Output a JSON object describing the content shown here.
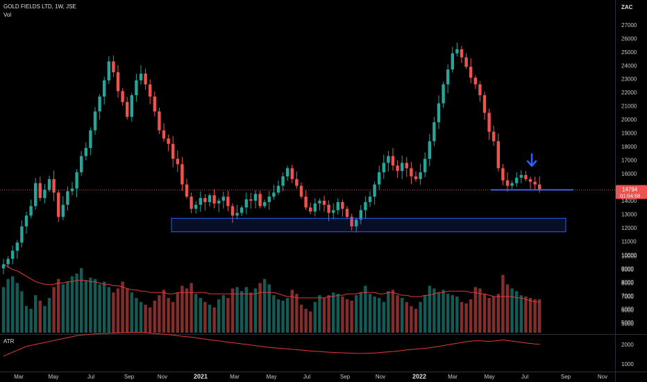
{
  "header": {
    "symbol": "GOLD FIELDS LTD, 1W, JSE",
    "vol_label": "Vol",
    "atr_label": "ATR",
    "currency": "ZAC"
  },
  "price_tag": {
    "price": "14794",
    "countdown": "01:04:58"
  },
  "colors": {
    "up": "#26a69a",
    "down": "#ef5350",
    "annotation": "#2962ff",
    "ma": "#e53935",
    "last_price_line": "#ef5350"
  },
  "chart_data": {
    "type": "candlestick",
    "interval": "1W",
    "price_axis": {
      "ticks": [
        5000,
        6000,
        7000,
        8000,
        9000,
        10000,
        11000,
        12000,
        13000,
        14000,
        15000,
        16000,
        17000,
        18000,
        19000,
        20000,
        21000,
        22000,
        23000,
        24000,
        25000,
        26000,
        27000
      ]
    },
    "atr_axis": {
      "ticks": [
        1000,
        2000
      ]
    },
    "time_axis": {
      "labels": [
        "Mar",
        "May",
        "Jul",
        "Sep",
        "Nov",
        "2021",
        "Mar",
        "May",
        "Jul",
        "Sep",
        "Nov",
        "2022",
        "Mar",
        "May",
        "Jul",
        "Sep",
        "Nov"
      ]
    },
    "close_series": [
      9300,
      9700,
      10300,
      10900,
      12100,
      12900,
      13600,
      15300,
      14200,
      14800,
      15600,
      14600,
      12800,
      13700,
      14700,
      14900,
      16100,
      17300,
      17900,
      19200,
      20600,
      21700,
      22900,
      24300,
      23500,
      22100,
      21300,
      20200,
      21800,
      22900,
      23400,
      22600,
      21700,
      20600,
      19200,
      18600,
      18200,
      17100,
      16700,
      15200,
      14300,
      13400,
      13700,
      14200,
      13900,
      14400,
      13800,
      14000,
      14300,
      13600,
      12900,
      13100,
      13500,
      14100,
      14000,
      14500,
      13600,
      13900,
      14300,
      14600,
      15100,
      15800,
      16400,
      15600,
      15100,
      14300,
      13500,
      13200,
      13800,
      14000,
      13700,
      13100,
      13300,
      13900,
      13400,
      12800,
      12100,
      12600,
      13300,
      13900,
      14300,
      15200,
      16100,
      16800,
      17300,
      16600,
      16200,
      16800,
      16400,
      15800,
      15600,
      16100,
      17100,
      18400,
      19800,
      21200,
      22600,
      23700,
      24900,
      25200,
      24600,
      23900,
      23100,
      22600,
      21800,
      20500,
      19100,
      18400,
      16400,
      15500,
      15100,
      15300,
      15700,
      15900,
      15600,
      15400,
      15200,
      14794
    ],
    "volume_series": [
      7700,
      8300,
      8500,
      8000,
      7400,
      6300,
      6100,
      7100,
      6700,
      6300,
      6900,
      7700,
      8300,
      7900,
      8100,
      8500,
      8700,
      9100,
      8200,
      8400,
      8300,
      7900,
      8100,
      7700,
      7300,
      7600,
      8100,
      7600,
      7300,
      6900,
      6600,
      6400,
      6200,
      6700,
      7100,
      7500,
      6900,
      6600,
      7300,
      7800,
      7600,
      8000,
      7200,
      6900,
      6600,
      6400,
      6200,
      6800,
      7100,
      6900,
      7600,
      7700,
      7400,
      7700,
      7300,
      7600,
      8000,
      8300,
      7900,
      7100,
      6800,
      6700,
      6900,
      7500,
      7200,
      6400,
      6100,
      5900,
      6600,
      7100,
      6900,
      7100,
      7300,
      7200,
      7000,
      6800,
      6700,
      7100,
      7300,
      7800,
      7200,
      7000,
      6900,
      6600,
      7400,
      7500,
      7100,
      6900,
      6600,
      6300,
      6100,
      6600,
      7100,
      7800,
      7600,
      7300,
      7500,
      7200,
      7100,
      7000,
      6600,
      6500,
      6800,
      7700,
      7600,
      7200,
      6900,
      7000,
      7200,
      8600,
      7900,
      7600,
      7400,
      7100,
      7000,
      6900,
      6800,
      6800
    ],
    "volume_ma": [
      9400,
      9200,
      9000,
      8900,
      8700,
      8500,
      8300,
      8100,
      8000,
      7900,
      7900,
      7900,
      8000,
      8000,
      8100,
      8100,
      8200,
      8200,
      8200,
      8100,
      8100,
      8000,
      7900,
      7900,
      7800,
      7800,
      7700,
      7600,
      7500,
      7500,
      7400,
      7400,
      7300,
      7300,
      7300,
      7300,
      7200,
      7200,
      7300,
      7300,
      7300,
      7300,
      7300,
      7300,
      7300,
      7200,
      7200,
      7200,
      7200,
      7200,
      7200,
      7200,
      7200,
      7200,
      7200,
      7200,
      7300,
      7300,
      7300,
      7300,
      7200,
      7100,
      7000,
      7000,
      6900,
      6900,
      6900,
      6900,
      6900,
      6900,
      6900,
      7000,
      7000,
      7100,
      7100,
      7200,
      7200,
      7200,
      7300,
      7300,
      7300,
      7300,
      7200,
      7200,
      7300,
      7300,
      7200,
      7100,
      7100,
      7000,
      7000,
      7000,
      7100,
      7100,
      7200,
      7300,
      7300,
      7400,
      7400,
      7400,
      7400,
      7400,
      7300,
      7300,
      7200,
      7200,
      7100,
      7000,
      7000,
      7000,
      7000,
      7000,
      6900,
      6900,
      6800,
      6700,
      6600,
      6600
    ],
    "atr_series": [
      1400,
      1500,
      1600,
      1700,
      1800,
      1900,
      1950,
      2000,
      2050,
      2100,
      2150,
      2200,
      2250,
      2300,
      2350,
      2400,
      2450,
      2480,
      2500,
      2520,
      2540,
      2550,
      2560,
      2570,
      2580,
      2590,
      2600,
      2610,
      2620,
      2620,
      2620,
      2600,
      2580,
      2560,
      2540,
      2520,
      2500,
      2480,
      2450,
      2420,
      2400,
      2370,
      2340,
      2300,
      2270,
      2240,
      2210,
      2180,
      2150,
      2120,
      2090,
      2060,
      2030,
      2000,
      1970,
      1940,
      1910,
      1880,
      1850,
      1830,
      1810,
      1790,
      1770,
      1750,
      1730,
      1710,
      1690,
      1670,
      1650,
      1640,
      1620,
      1600,
      1590,
      1580,
      1570,
      1560,
      1550,
      1540,
      1540,
      1540,
      1550,
      1560,
      1580,
      1600,
      1620,
      1640,
      1660,
      1690,
      1720,
      1740,
      1760,
      1780,
      1800,
      1830,
      1860,
      1900,
      1940,
      1980,
      2020,
      2060,
      2100,
      2140,
      2170,
      2190,
      2180,
      2170,
      2160,
      2170,
      2200,
      2230,
      2200,
      2170,
      2140,
      2110,
      2080,
      2050,
      2020,
      2000
    ],
    "support_zone": {
      "price_low": 11700,
      "price_high": 12700
    },
    "horizontal_level": 14800,
    "annotation": "arrow-down",
    "last_price": 14794
  }
}
